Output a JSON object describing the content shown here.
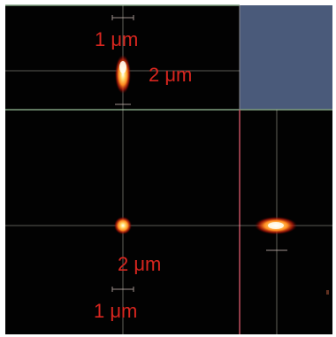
{
  "figure": {
    "labels": {
      "xz_width": "1 μm",
      "xz_height": "2 μm",
      "xy_height": "2 μm",
      "xy_width": "1 μm"
    },
    "colors": {
      "background": "#020202",
      "panel_empty": "#4a5a7a",
      "separator_green": "#7fa080",
      "separator_red": "#c05060",
      "crosshair": "#d0d0c0",
      "label": "#d8261f",
      "spot_core": "#ffffff",
      "spot_mid": "#ffd040",
      "spot_outer": "#c01808"
    },
    "panels": [
      "xz-projection",
      "empty-corner",
      "xy-view",
      "yz-projection"
    ]
  }
}
